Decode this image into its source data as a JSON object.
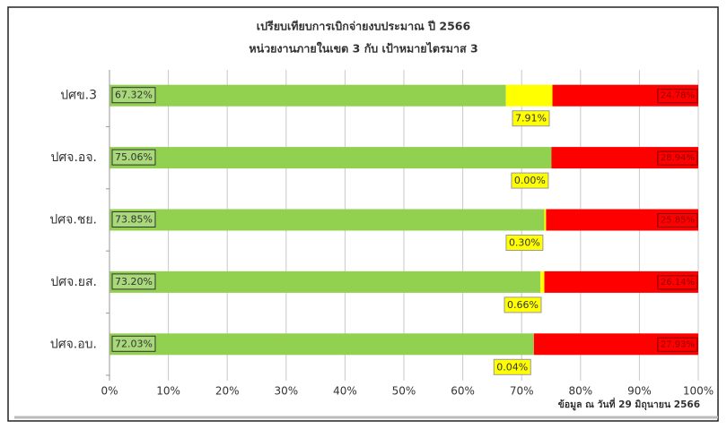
{
  "chart_data": {
    "type": "stacked-bar",
    "title": "เปรียบเทียบการเบิกจ่ายงบประมาณ ปี 2566",
    "subtitle": "หน่วยงานภายในเขต 3  กับ เป้าหมายไตรมาส 3",
    "annotation": "ข้อมูล ณ วันที่ 29 มิถุนายน 2566",
    "categories": [
      "ปศข.3",
      "ปศจ.อจ.",
      "ปศจ.ชย.",
      "ปศจ.ยส.",
      "ปศจ.อบ."
    ],
    "series": [
      {
        "color": "#92d050",
        "values": [
          67.32,
          75.06,
          73.85,
          73.2,
          72.03
        ],
        "value_labels": [
          "67.32%",
          "75.06%",
          "73.85%",
          "73.20%",
          "72.03%"
        ]
      },
      {
        "color": "#ffff00",
        "values": [
          7.91,
          0.0,
          0.3,
          0.66,
          0.04
        ],
        "value_labels": [
          "7.91%",
          "0.00%",
          "0.30%",
          "0.66%",
          "0.04%"
        ]
      },
      {
        "color": "#ff0000",
        "values": [
          24.78,
          28.94,
          25.85,
          26.14,
          27.93
        ],
        "value_labels": [
          "24.78%",
          "28.94%",
          "25.85%",
          "26.14%",
          "27.93%"
        ]
      }
    ],
    "xlim": [
      0,
      100
    ],
    "xticks": [
      {
        "value": 0,
        "label": "0%"
      },
      {
        "value": 10,
        "label": "10%"
      },
      {
        "value": 20,
        "label": "20%"
      },
      {
        "value": 30,
        "label": "30%"
      },
      {
        "value": 40,
        "label": "40%"
      },
      {
        "value": 50,
        "label": "50%"
      },
      {
        "value": 60,
        "label": "60%"
      },
      {
        "value": 70,
        "label": "70%"
      },
      {
        "value": 80,
        "label": "80%"
      },
      {
        "value": 90,
        "label": "90%"
      },
      {
        "value": 100,
        "label": "100%"
      }
    ],
    "grid": true
  }
}
